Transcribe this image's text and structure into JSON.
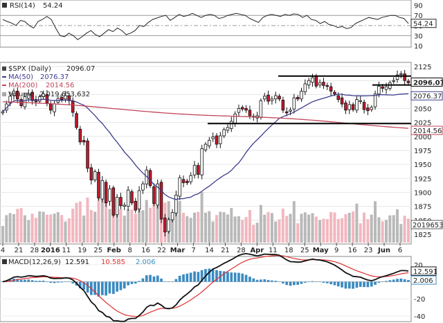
{
  "chart_data": [
    {
      "type": "line",
      "panel": "rsi",
      "label": "RSI(14)",
      "value_text": "54.24",
      "ylim": [
        10,
        95
      ],
      "y_ticks": [
        10,
        30,
        50,
        70,
        90
      ],
      "levels": [
        30,
        50,
        70
      ],
      "last_value": 54.24,
      "series": [
        {
          "values": [
            62,
            58,
            55,
            50,
            60,
            58,
            50,
            45,
            58,
            62,
            68,
            62,
            45,
            30,
            28,
            35,
            30,
            22,
            28,
            35,
            40,
            32,
            28,
            35,
            42,
            38,
            45,
            40,
            32,
            35,
            40,
            50,
            48,
            56,
            62,
            65,
            68,
            70,
            60,
            66,
            72,
            68,
            70,
            74,
            70,
            66,
            70,
            72,
            70,
            64,
            66,
            70,
            72,
            74,
            72,
            70,
            64,
            60,
            56,
            66,
            70,
            72,
            70,
            68,
            72,
            70,
            73,
            72,
            66,
            70,
            62,
            60,
            54,
            58,
            52,
            50,
            46,
            48,
            44,
            46,
            54,
            58,
            62,
            66,
            64,
            62,
            66,
            68,
            70,
            70,
            66,
            64,
            54
          ]
        }
      ]
    },
    {
      "type": "candlestick",
      "panel": "price",
      "label": "$SPX (Daily)",
      "value_text": "2096.07",
      "ylim": [
        1810,
        2130
      ],
      "y_ticks": [
        1825,
        1850,
        1875,
        1900,
        1925,
        1950,
        1975,
        2000,
        2025,
        2050,
        2075,
        2100,
        2125
      ],
      "x_tick_labels": [
        "4",
        "21",
        "28",
        "2016",
        "11",
        "19",
        "25",
        "Feb",
        "8",
        "16",
        "22",
        "Mar",
        "7",
        "14",
        "21",
        "28",
        "Apr",
        "11",
        "18",
        "25",
        "May",
        "9",
        "16",
        "23",
        "Jun",
        "6"
      ],
      "bold_tick_labels": [
        "2016",
        "Feb",
        "Mar",
        "Apr",
        "May",
        "Jun"
      ],
      "closes": [
        2044,
        2058,
        2072,
        2081,
        2067,
        2055,
        2071,
        2076,
        2064,
        2062,
        2071,
        2076,
        2060,
        2047,
        2058,
        2068,
        2066,
        2073,
        2064,
        2043,
        2016,
        1990,
        1990,
        1943,
        1922,
        1937,
        1890,
        1921,
        1881,
        1906,
        1859,
        1891,
        1876,
        1877,
        1904,
        1881,
        1868,
        1903,
        1915,
        1940,
        1912,
        1880,
        1915,
        1852,
        1829,
        1851,
        1864,
        1895,
        1926,
        1917,
        1917,
        1930,
        1948,
        1932,
        1978,
        1986,
        1993,
        1999,
        1986,
        2001,
        2012,
        2016,
        2027,
        2040,
        2050,
        2049,
        2047,
        2037,
        2035,
        2037,
        2064,
        2072,
        2063,
        2067,
        2073,
        2067,
        2047,
        2042,
        2047,
        2069,
        2067,
        2081,
        2094,
        2100,
        2105,
        2090,
        2096,
        2091,
        2090,
        2081,
        2076,
        2066,
        2058,
        2047,
        2057,
        2048,
        2066,
        2064,
        2048,
        2046,
        2052,
        2076,
        2090,
        2086,
        2089,
        2096,
        2100,
        2110,
        2112,
        2100,
        2096
      ],
      "series": [
        {
          "name": "MA(50)",
          "value_text": "2076.37",
          "color": "#3b3b8c",
          "last_value": 2076.37
        },
        {
          "name": "MA(200)",
          "value_text": "2014.56",
          "color": "#c0455a",
          "last_value": 2014.56
        }
      ],
      "volume": {
        "label": "Volume",
        "value_text": "2,019,653,632",
        "last_label": "2019653"
      },
      "horizontal_lines": [
        2108,
        2092,
        2023
      ],
      "axis_value_labels": [
        "2096.07",
        "2076.37",
        "2014.56"
      ]
    },
    {
      "type": "line",
      "panel": "macd",
      "label": "MACD(12,26,9)",
      "values_text": [
        "12.591",
        "10.585",
        "2.006"
      ],
      "ylim": [
        -45,
        28
      ],
      "y_ticks": [
        -40,
        -20,
        0,
        20
      ],
      "last_values": {
        "macd": 12.591,
        "signal": 10.585,
        "histogram": 2.006
      },
      "series_colors": {
        "macd": "#111111",
        "signal": "#e03030",
        "histogram": "#3a8bc2"
      }
    }
  ],
  "colors": {
    "up": "#ffffff",
    "down": "#c2182b",
    "candle_outline": "#111111",
    "volume_up": "#b9b9b9",
    "volume_down": "#f2b7bf"
  }
}
